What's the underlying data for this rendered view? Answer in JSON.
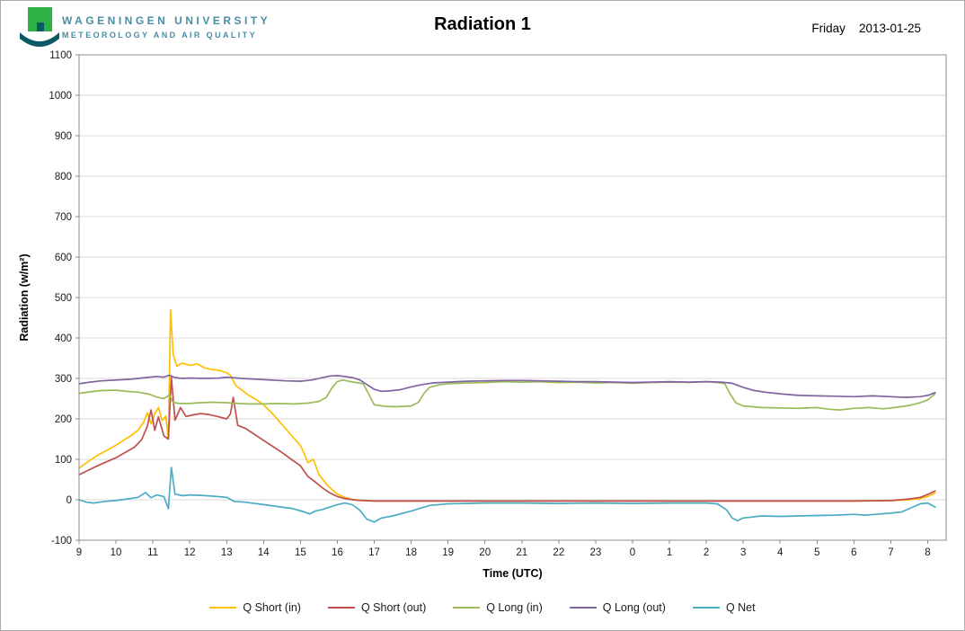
{
  "header": {
    "university_line1": "WAGENINGEN UNIVERSITY",
    "university_line2": "METEOROLOGY AND AIR QUALITY",
    "title": "Radiation 1",
    "day": "Friday",
    "date": "2013-01-25",
    "logo_square_color": "#2fb244",
    "logo_swoosh_color": "#0b5a66",
    "accent_teal": "#4a8da4"
  },
  "chart_data": {
    "type": "line",
    "title": "Radiation 1",
    "xlabel": "Time (UTC)",
    "ylabel": "Radiation (w/m²)",
    "xlim": [
      9,
      32.5
    ],
    "ylim": [
      -100,
      1100
    ],
    "grid": "horizontal",
    "legend_position": "bottom",
    "grid_color": "#d9d9d9",
    "axis_color": "#8c8c8c",
    "y_ticks": [
      -100,
      0,
      100,
      200,
      300,
      400,
      500,
      600,
      700,
      800,
      900,
      1000,
      1100
    ],
    "x_tick_values": [
      9,
      10,
      11,
      12,
      13,
      14,
      15,
      16,
      17,
      18,
      19,
      20,
      21,
      22,
      23,
      24,
      25,
      26,
      27,
      28,
      29,
      30,
      31,
      32
    ],
    "x_tick_labels": [
      "9",
      "10",
      "11",
      "12",
      "13",
      "14",
      "15",
      "16",
      "17",
      "18",
      "19",
      "20",
      "21",
      "22",
      "23",
      "0",
      "1",
      "2",
      "3",
      "4",
      "5",
      "6",
      "7",
      "8"
    ],
    "series": [
      {
        "name": "Q Short (in)",
        "color": "#ffc000",
        "x": [
          9.0,
          9.25,
          9.5,
          9.75,
          10.0,
          10.2,
          10.4,
          10.6,
          10.75,
          10.85,
          10.95,
          11.05,
          11.15,
          11.25,
          11.35,
          11.42,
          11.48,
          11.55,
          11.65,
          11.8,
          12.0,
          12.2,
          12.4,
          12.6,
          12.8,
          13.0,
          13.1,
          13.25,
          13.4,
          13.6,
          13.8,
          14.0,
          14.25,
          14.5,
          14.75,
          15.0,
          15.1,
          15.2,
          15.35,
          15.5,
          15.75,
          16.0,
          16.2,
          16.4,
          16.7,
          17.0,
          18.0,
          19.0,
          20.0,
          21.0,
          22.0,
          23.0,
          24.0,
          25.0,
          26.0,
          27.0,
          28.0,
          29.0,
          30.0,
          31.0,
          31.5,
          31.8,
          32.0,
          32.2
        ],
        "y": [
          78,
          95,
          110,
          122,
          135,
          147,
          158,
          172,
          192,
          215,
          188,
          212,
          228,
          196,
          207,
          152,
          470,
          360,
          330,
          338,
          332,
          336,
          326,
          322,
          320,
          314,
          308,
          282,
          272,
          258,
          248,
          235,
          212,
          186,
          160,
          134,
          114,
          92,
          100,
          62,
          34,
          14,
          6,
          1,
          -2,
          -3,
          -3,
          -3,
          -3,
          -3,
          -3,
          -3,
          -3,
          -3,
          -3,
          -3,
          -3,
          -3,
          -3,
          -2,
          0,
          3,
          8,
          17
        ]
      },
      {
        "name": "Q Short (out)",
        "color": "#c0504d",
        "x": [
          9.0,
          9.25,
          9.5,
          9.75,
          10.0,
          10.25,
          10.5,
          10.7,
          10.85,
          10.95,
          11.05,
          11.15,
          11.3,
          11.42,
          11.5,
          11.6,
          11.75,
          11.9,
          12.1,
          12.3,
          12.5,
          12.75,
          13.0,
          13.1,
          13.18,
          13.3,
          13.5,
          13.75,
          14.0,
          14.25,
          14.5,
          14.75,
          15.0,
          15.2,
          15.4,
          15.6,
          15.8,
          16.0,
          16.2,
          16.5,
          17.0,
          18.0,
          19.0,
          20.0,
          21.0,
          22.0,
          23.0,
          24.0,
          25.0,
          26.0,
          27.0,
          28.0,
          29.0,
          30.0,
          31.0,
          31.5,
          31.8,
          32.0,
          32.2
        ],
        "y": [
          62,
          73,
          84,
          94,
          104,
          117,
          130,
          149,
          182,
          222,
          172,
          205,
          158,
          150,
          303,
          197,
          228,
          206,
          210,
          213,
          211,
          206,
          200,
          212,
          253,
          184,
          177,
          162,
          147,
          132,
          117,
          100,
          84,
          58,
          44,
          29,
          17,
          8,
          3,
          -1,
          -3,
          -3,
          -3,
          -3,
          -3,
          -3,
          -3,
          -3,
          -3,
          -3,
          -3,
          -3,
          -3,
          -3,
          -2,
          2,
          6,
          13,
          22
        ]
      },
      {
        "name": "Q Long (in)",
        "color": "#9bbb59",
        "x": [
          9.0,
          9.3,
          9.6,
          10.0,
          10.3,
          10.6,
          10.9,
          11.1,
          11.3,
          11.45,
          11.55,
          11.7,
          12.0,
          12.3,
          12.6,
          13.0,
          13.3,
          13.6,
          14.0,
          14.4,
          14.8,
          15.2,
          15.5,
          15.7,
          15.85,
          16.0,
          16.15,
          16.3,
          16.5,
          16.7,
          16.85,
          17.0,
          17.3,
          17.6,
          18.0,
          18.2,
          18.35,
          18.5,
          18.75,
          19.0,
          19.5,
          20.0,
          20.5,
          21.0,
          21.5,
          22.0,
          22.5,
          23.0,
          23.5,
          24.0,
          24.5,
          25.0,
          25.5,
          26.0,
          26.3,
          26.5,
          26.65,
          26.8,
          27.0,
          27.5,
          28.0,
          28.5,
          29.0,
          29.3,
          29.6,
          30.0,
          30.4,
          30.8,
          31.2,
          31.5,
          31.8,
          32.0,
          32.2
        ],
        "y": [
          263,
          267,
          270,
          271,
          268,
          266,
          261,
          254,
          250,
          259,
          241,
          238,
          238,
          240,
          241,
          240,
          238,
          237,
          237,
          238,
          237,
          239,
          243,
          253,
          276,
          292,
          296,
          293,
          290,
          287,
          261,
          235,
          231,
          230,
          232,
          241,
          263,
          278,
          284,
          287,
          289,
          290,
          292,
          291,
          292,
          290,
          291,
          289,
          290,
          288,
          290,
          291,
          290,
          292,
          290,
          287,
          261,
          240,
          232,
          228,
          227,
          226,
          228,
          224,
          222,
          226,
          228,
          225,
          229,
          233,
          240,
          247,
          262
        ]
      },
      {
        "name": "Q Long (out)",
        "color": "#8064a2",
        "x": [
          9.0,
          9.3,
          9.6,
          10.0,
          10.4,
          10.8,
          11.1,
          11.3,
          11.45,
          11.6,
          11.8,
          12.0,
          12.4,
          12.8,
          13.0,
          13.4,
          13.8,
          14.2,
          14.6,
          15.0,
          15.3,
          15.6,
          15.8,
          16.0,
          16.2,
          16.4,
          16.6,
          16.8,
          17.0,
          17.2,
          17.4,
          17.7,
          18.0,
          18.3,
          18.6,
          19.0,
          19.5,
          20.0,
          20.5,
          21.0,
          21.5,
          22.0,
          22.5,
          23.0,
          23.5,
          24.0,
          24.5,
          25.0,
          25.5,
          26.0,
          26.4,
          26.7,
          27.0,
          27.3,
          27.6,
          28.0,
          28.5,
          29.0,
          29.5,
          30.0,
          30.5,
          31.0,
          31.4,
          31.8,
          32.0,
          32.2
        ],
        "y": [
          287,
          291,
          294,
          296,
          298,
          302,
          305,
          303,
          308,
          302,
          300,
          301,
          300,
          301,
          303,
          300,
          298,
          296,
          294,
          293,
          296,
          302,
          306,
          307,
          305,
          302,
          297,
          285,
          273,
          268,
          269,
          272,
          279,
          285,
          289,
          291,
          293,
          294,
          295,
          295,
          294,
          293,
          292,
          292,
          291,
          290,
          291,
          292,
          291,
          292,
          291,
          288,
          278,
          270,
          266,
          262,
          258,
          257,
          256,
          255,
          257,
          255,
          253,
          255,
          258,
          265
        ]
      },
      {
        "name": "Q Net",
        "color": "#4bacc6",
        "x": [
          9.0,
          9.2,
          9.4,
          9.7,
          10.0,
          10.3,
          10.6,
          10.8,
          10.95,
          11.1,
          11.3,
          11.42,
          11.5,
          11.6,
          11.8,
          12.0,
          12.3,
          12.6,
          13.0,
          13.2,
          13.5,
          14.0,
          14.4,
          14.8,
          15.1,
          15.25,
          15.4,
          15.6,
          15.8,
          16.0,
          16.2,
          16.4,
          16.6,
          16.8,
          17.0,
          17.2,
          17.5,
          18.0,
          18.5,
          19.0,
          19.5,
          20.0,
          21.0,
          22.0,
          23.0,
          24.0,
          25.0,
          26.0,
          26.3,
          26.55,
          26.7,
          26.85,
          27.0,
          27.5,
          28.0,
          28.5,
          29.0,
          29.5,
          30.0,
          30.3,
          30.6,
          31.0,
          31.3,
          31.6,
          31.8,
          32.0,
          32.2
        ],
        "y": [
          0,
          -6,
          -8,
          -4,
          -2,
          2,
          6,
          18,
          5,
          12,
          8,
          -22,
          80,
          14,
          10,
          12,
          11,
          9,
          6,
          -4,
          -6,
          -12,
          -17,
          -22,
          -30,
          -35,
          -28,
          -24,
          -18,
          -12,
          -8,
          -12,
          -25,
          -48,
          -55,
          -45,
          -40,
          -28,
          -14,
          -10,
          -9,
          -8,
          -8,
          -9,
          -8,
          -9,
          -8,
          -8,
          -10,
          -25,
          -45,
          -52,
          -45,
          -40,
          -41,
          -40,
          -39,
          -38,
          -36,
          -38,
          -36,
          -33,
          -30,
          -18,
          -10,
          -8,
          -18
        ]
      }
    ]
  }
}
